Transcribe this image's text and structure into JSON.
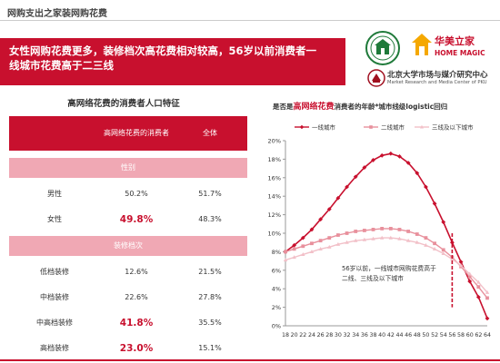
{
  "header": {
    "title": "网购支出之家装网购花费"
  },
  "banner": {
    "line1": "女性网购花费更多，装修档次高花费相对较高，56岁以前消费者一",
    "line2": "线城市花费高于二三线"
  },
  "logos": {
    "home_magic_cn": "华美立家",
    "home_magic_en": "HOME MAGIC",
    "pku_cn": "北京大学市场与媒介研究中心",
    "pku_en": "Market Research and Media Center of PKU"
  },
  "colors": {
    "accent": "#c8102e",
    "section_bg": "#f0a8b4",
    "tier1": "#c8102e",
    "tier2": "#e8909c",
    "tier3": "#f2c0c8"
  },
  "table": {
    "title": "高网络花费的消费者人口特征",
    "headers": [
      "",
      "高网络花费的消费者",
      "全体"
    ],
    "sections": [
      {
        "name": "性别",
        "rows": [
          {
            "label": "男性",
            "high": "50.2%",
            "all": "51.7%",
            "highlight": false
          },
          {
            "label": "女性",
            "high": "49.8%",
            "all": "48.3%",
            "highlight": true
          }
        ]
      },
      {
        "name": "装修档次",
        "rows": [
          {
            "label": "低档装修",
            "high": "12.6%",
            "all": "21.5%",
            "highlight": false
          },
          {
            "label": "中档装修",
            "high": "22.6%",
            "all": "27.8%",
            "highlight": false
          },
          {
            "label": "中高档装修",
            "high": "41.8%",
            "all": "35.5%",
            "highlight": true
          },
          {
            "label": "高档装修",
            "high": "23.0%",
            "all": "15.1%",
            "highlight": true
          }
        ]
      }
    ]
  },
  "chart_title": {
    "prefix": "是否是",
    "highlight": "高网络花费",
    "suffix": "消费者的年龄*城市线级logistic回归"
  },
  "chart_data": {
    "type": "line",
    "x": [
      18,
      20,
      22,
      24,
      26,
      28,
      30,
      32,
      34,
      36,
      38,
      40,
      42,
      44,
      46,
      48,
      50,
      52,
      54,
      56,
      58,
      60,
      62,
      64
    ],
    "ylim": [
      0,
      20
    ],
    "yticks": [
      0,
      2,
      4,
      6,
      8,
      10,
      12,
      14,
      16,
      18,
      20
    ],
    "ytick_labels": [
      "0%",
      "2%",
      "4%",
      "6%",
      "8%",
      "10%",
      "12%",
      "14%",
      "16%",
      "18%",
      "20%"
    ],
    "series": [
      {
        "name": "一线城市",
        "values": [
          8.0,
          8.7,
          9.5,
          10.4,
          11.5,
          12.6,
          13.8,
          15.0,
          16.1,
          17.1,
          17.9,
          18.4,
          18.6,
          18.3,
          17.6,
          16.5,
          15.0,
          13.2,
          11.2,
          9.0,
          6.9,
          4.8,
          3.1,
          0.8
        ]
      },
      {
        "name": "二线城市",
        "values": [
          8.0,
          8.3,
          8.6,
          8.9,
          9.2,
          9.5,
          9.8,
          10.0,
          10.2,
          10.3,
          10.4,
          10.5,
          10.5,
          10.4,
          10.2,
          9.9,
          9.5,
          8.9,
          8.2,
          7.4,
          6.4,
          5.3,
          4.2,
          3.0
        ]
      },
      {
        "name": "三线及以下城市",
        "values": [
          7.1,
          7.4,
          7.7,
          8.0,
          8.3,
          8.5,
          8.8,
          9.0,
          9.2,
          9.3,
          9.4,
          9.5,
          9.5,
          9.4,
          9.2,
          9.0,
          8.7,
          8.3,
          7.8,
          7.2,
          6.5,
          5.6,
          4.7,
          3.6
        ]
      }
    ],
    "annotation": "56岁以前，一线城市网购花费高于二线、三线及以下城市",
    "marker_x": 56,
    "legend": "top"
  }
}
